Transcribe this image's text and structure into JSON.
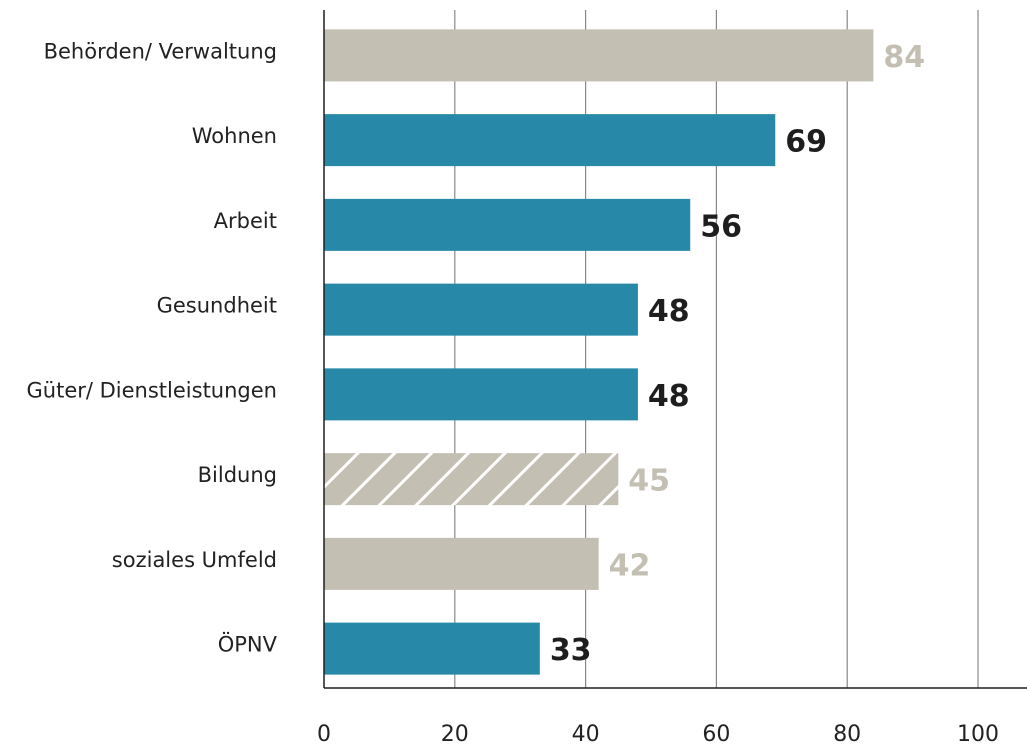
{
  "chart_data": {
    "type": "bar",
    "orientation": "horizontal",
    "categories": [
      "Behörden/ Verwaltung",
      "Wohnen",
      "Arbeit",
      "Gesundheit",
      "Güter/ Dienstleistungen",
      "Bildung",
      "soziales Umfeld",
      "ÖPNV"
    ],
    "values": [
      84,
      69,
      56,
      48,
      48,
      45,
      42,
      33
    ],
    "colors": [
      "#c3bfb3",
      "#2888a8",
      "#2888a8",
      "#2888a8",
      "#2888a8",
      "#c3bfb3",
      "#c3bfb3",
      "#2888a8"
    ],
    "label_colors": [
      "#c3bfb3",
      "#1e1e1e",
      "#1e1e1e",
      "#1e1e1e",
      "#1e1e1e",
      "#c3bfb3",
      "#c3bfb3",
      "#1e1e1e"
    ],
    "hatched": [
      false,
      false,
      false,
      false,
      false,
      true,
      false,
      false
    ],
    "xlim": [
      0,
      100
    ],
    "xticks": [
      0,
      20,
      40,
      60,
      80,
      100
    ],
    "grid": true
  }
}
